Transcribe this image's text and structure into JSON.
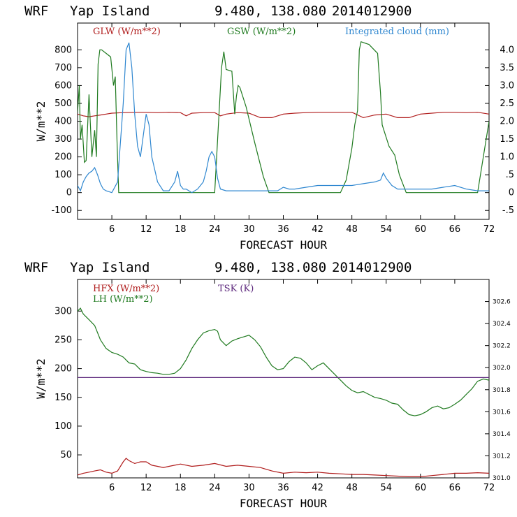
{
  "chart_data": [
    {
      "type": "line",
      "title": {
        "model": "WRF",
        "location": "Yap Island",
        "coords": "9.480, 138.080",
        "date": "2014012900"
      },
      "xlabel": "FORECAST HOUR",
      "ylabel": "W/m**2",
      "xlim": [
        0,
        72
      ],
      "ylim": [
        -150,
        950
      ],
      "y2lim": [
        -0.75,
        4.75
      ],
      "x_ticks": [
        6,
        12,
        18,
        24,
        30,
        36,
        42,
        48,
        54,
        60,
        66,
        72
      ],
      "x_tick_labels": [
        "6",
        "12",
        "18",
        "24",
        "30",
        "36",
        "42",
        "48",
        "54",
        "60",
        "66",
        "72"
      ],
      "y_ticks": [
        -100,
        0,
        100,
        200,
        300,
        400,
        500,
        600,
        700,
        800
      ],
      "y_tick_labels": [
        "-100",
        "0",
        "100",
        "200",
        "300",
        "400",
        "500",
        "600",
        "700",
        "800"
      ],
      "y2_ticks": [
        -0.5,
        0,
        0.5,
        1.0,
        1.5,
        2.0,
        2.5,
        3.0,
        3.5,
        4.0
      ],
      "y2_tick_labels": [
        "-.5",
        "0",
        ".5",
        "1.0",
        "1.5",
        "2.0",
        "2.5",
        "3.0",
        "3.5",
        "4.0"
      ],
      "grid": false,
      "series": [
        {
          "name": "GLW (W/m**2)",
          "color": "#b01c1c",
          "axis": "left",
          "x": [
            0,
            1,
            2,
            3,
            4,
            5,
            6,
            8,
            10,
            12,
            14,
            16,
            18,
            19,
            20,
            22,
            24,
            25,
            26,
            28,
            30,
            32,
            34,
            36,
            38,
            40,
            42,
            44,
            46,
            48,
            50,
            52,
            54,
            56,
            58,
            60,
            62,
            64,
            66,
            68,
            70,
            72
          ],
          "y": [
            440,
            430,
            425,
            430,
            435,
            440,
            445,
            448,
            450,
            450,
            448,
            450,
            448,
            430,
            445,
            448,
            448,
            430,
            440,
            448,
            445,
            420,
            420,
            440,
            445,
            448,
            450,
            450,
            450,
            450,
            420,
            435,
            440,
            420,
            420,
            440,
            445,
            450,
            450,
            448,
            450,
            440
          ]
        },
        {
          "name": "GSW (W/m**2)",
          "color": "#1f7a1f",
          "axis": "left",
          "x": [
            0,
            0.3,
            0.5,
            0.8,
            1.2,
            1.5,
            2,
            2.5,
            3,
            3.3,
            3.6,
            3.9,
            4.2,
            5,
            5.8,
            6.3,
            6.6,
            6.9,
            7.2,
            12,
            20,
            24,
            24.6,
            25.2,
            25.6,
            26,
            27,
            27.5,
            27.8,
            28.1,
            28.4,
            29.5,
            31,
            32.5,
            33.5,
            46,
            47,
            48,
            48.5,
            49,
            49.3,
            49.6,
            51,
            52.5,
            53,
            53.3,
            53.8,
            54.5,
            55.5,
            56.3,
            57.5,
            70,
            72
          ],
          "y": [
            450,
            600,
            300,
            380,
            170,
            180,
            550,
            200,
            350,
            200,
            720,
            800,
            800,
            780,
            760,
            600,
            650,
            300,
            0,
            0,
            0,
            0,
            350,
            700,
            790,
            690,
            680,
            440,
            540,
            600,
            590,
            480,
            280,
            90,
            0,
            0,
            70,
            250,
            380,
            460,
            800,
            845,
            830,
            780,
            560,
            380,
            330,
            260,
            210,
            100,
            0,
            0,
            400
          ]
        },
        {
          "name": "Integrated cloud (mm)",
          "color": "#2f87d0",
          "axis": "right",
          "x": [
            0,
            0.5,
            1,
            1.5,
            2,
            2.5,
            3,
            3.5,
            4,
            4.5,
            5,
            6,
            7,
            8,
            8.5,
            9,
            9.5,
            10,
            10.5,
            11,
            11.5,
            12,
            12.5,
            13,
            14,
            15,
            16,
            17,
            17.5,
            18,
            18.5,
            19,
            19.5,
            20,
            21,
            22,
            22.5,
            23,
            23.5,
            24,
            24.5,
            25,
            26,
            28,
            30,
            32,
            34,
            35,
            36,
            37,
            38,
            40,
            42,
            44,
            46,
            48,
            50,
            52,
            53,
            53.5,
            54,
            55,
            56,
            58,
            60,
            62,
            64,
            66,
            68,
            70,
            72
          ],
          "y": [
            0.2,
            0.05,
            0.3,
            0.45,
            0.55,
            0.6,
            0.7,
            0.5,
            0.25,
            0.1,
            0.05,
            0,
            0.3,
            2.5,
            4.0,
            4.2,
            3.5,
            2.2,
            1.3,
            1.0,
            1.6,
            2.2,
            1.9,
            1.0,
            0.3,
            0.05,
            0.05,
            0.3,
            0.6,
            0.2,
            0.1,
            0.1,
            0.05,
            0,
            0.1,
            0.3,
            0.6,
            1.0,
            1.15,
            1.0,
            0.4,
            0.1,
            0.05,
            0.05,
            0.05,
            0.05,
            0.05,
            0.05,
            0.15,
            0.1,
            0.1,
            0.15,
            0.2,
            0.2,
            0.2,
            0.2,
            0.25,
            0.3,
            0.35,
            0.55,
            0.4,
            0.2,
            0.1,
            0.1,
            0.1,
            0.1,
            0.15,
            0.2,
            0.1,
            0.05,
            0.05
          ]
        }
      ]
    },
    {
      "type": "line",
      "title": {
        "model": "WRF",
        "location": "Yap Island",
        "coords": "9.480, 138.080",
        "date": "2014012900"
      },
      "xlabel": "FORECAST HOUR",
      "ylabel": "W/m**2",
      "xlim": [
        0,
        72
      ],
      "ylim": [
        10,
        355
      ],
      "y2lim": [
        301.0,
        302.8
      ],
      "x_ticks": [
        6,
        12,
        18,
        24,
        30,
        36,
        42,
        48,
        54,
        60,
        66,
        72
      ],
      "x_tick_labels": [
        "6",
        "12",
        "18",
        "24",
        "30",
        "36",
        "42",
        "48",
        "54",
        "60",
        "66",
        "72"
      ],
      "y_ticks": [
        50,
        100,
        150,
        200,
        250,
        300
      ],
      "y_tick_labels": [
        "50",
        "100",
        "150",
        "200",
        "250",
        "300"
      ],
      "y2_ticks": [
        301.0,
        301.2,
        301.4,
        301.6,
        301.8,
        302.0,
        302.2,
        302.4,
        302.6
      ],
      "y2_tick_labels": [
        "301.0",
        "301.2",
        "301.4",
        "301.6",
        "301.8",
        "302.0",
        "302.2",
        "302.4",
        "302.6"
      ],
      "grid": false,
      "series": [
        {
          "name": "HFX (W/m**2)",
          "color": "#b01c1c",
          "axis": "left",
          "x": [
            0,
            1,
            2,
            3,
            4,
            5,
            6,
            7,
            8,
            8.5,
            9,
            10,
            11,
            12,
            13,
            14,
            15,
            16,
            18,
            20,
            22,
            24,
            26,
            28,
            30,
            32,
            34,
            36,
            38,
            40,
            42,
            44,
            46,
            48,
            50,
            52,
            54,
            56,
            58,
            60,
            62,
            64,
            66,
            68,
            70,
            72
          ],
          "y": [
            15,
            18,
            20,
            22,
            24,
            20,
            18,
            22,
            38,
            44,
            40,
            35,
            38,
            38,
            32,
            30,
            28,
            30,
            34,
            30,
            32,
            35,
            30,
            32,
            30,
            28,
            22,
            18,
            20,
            19,
            20,
            18,
            17,
            16,
            16,
            15,
            14,
            13,
            12,
            12,
            14,
            16,
            18,
            18,
            19,
            18
          ]
        },
        {
          "name": "LH (W/m**2)",
          "color": "#1f7a1f",
          "axis": "left",
          "x": [
            0,
            0.5,
            1,
            2,
            3,
            4,
            5,
            6,
            7,
            8,
            9,
            10,
            11,
            12,
            13,
            14,
            15,
            16,
            17,
            18,
            19,
            20,
            21,
            22,
            23,
            24,
            24.5,
            25,
            26,
            27,
            28,
            29,
            30,
            31,
            32,
            33,
            34,
            35,
            36,
            37,
            38,
            39,
            40,
            41,
            42,
            43,
            44,
            45,
            46,
            47,
            48,
            49,
            50,
            51,
            52,
            53,
            54,
            55,
            56,
            57,
            58,
            59,
            60,
            61,
            62,
            63,
            64,
            65,
            66,
            67,
            68,
            69,
            70,
            71,
            72
          ],
          "y": [
            300,
            305,
            295,
            285,
            275,
            250,
            235,
            228,
            225,
            220,
            210,
            208,
            198,
            195,
            193,
            192,
            190,
            190,
            192,
            200,
            215,
            235,
            250,
            262,
            266,
            268,
            265,
            250,
            240,
            248,
            252,
            255,
            258,
            250,
            238,
            220,
            205,
            198,
            200,
            212,
            220,
            218,
            210,
            198,
            205,
            210,
            200,
            190,
            180,
            170,
            162,
            158,
            160,
            155,
            150,
            148,
            145,
            140,
            138,
            128,
            120,
            118,
            120,
            125,
            132,
            135,
            130,
            132,
            138,
            145,
            155,
            165,
            178,
            182,
            180
          ]
        },
        {
          "name": "TSK (K)",
          "color": "#5e2a7e",
          "axis": "right",
          "x": [
            0,
            72
          ],
          "y": [
            301.91,
            301.91
          ]
        }
      ]
    }
  ]
}
